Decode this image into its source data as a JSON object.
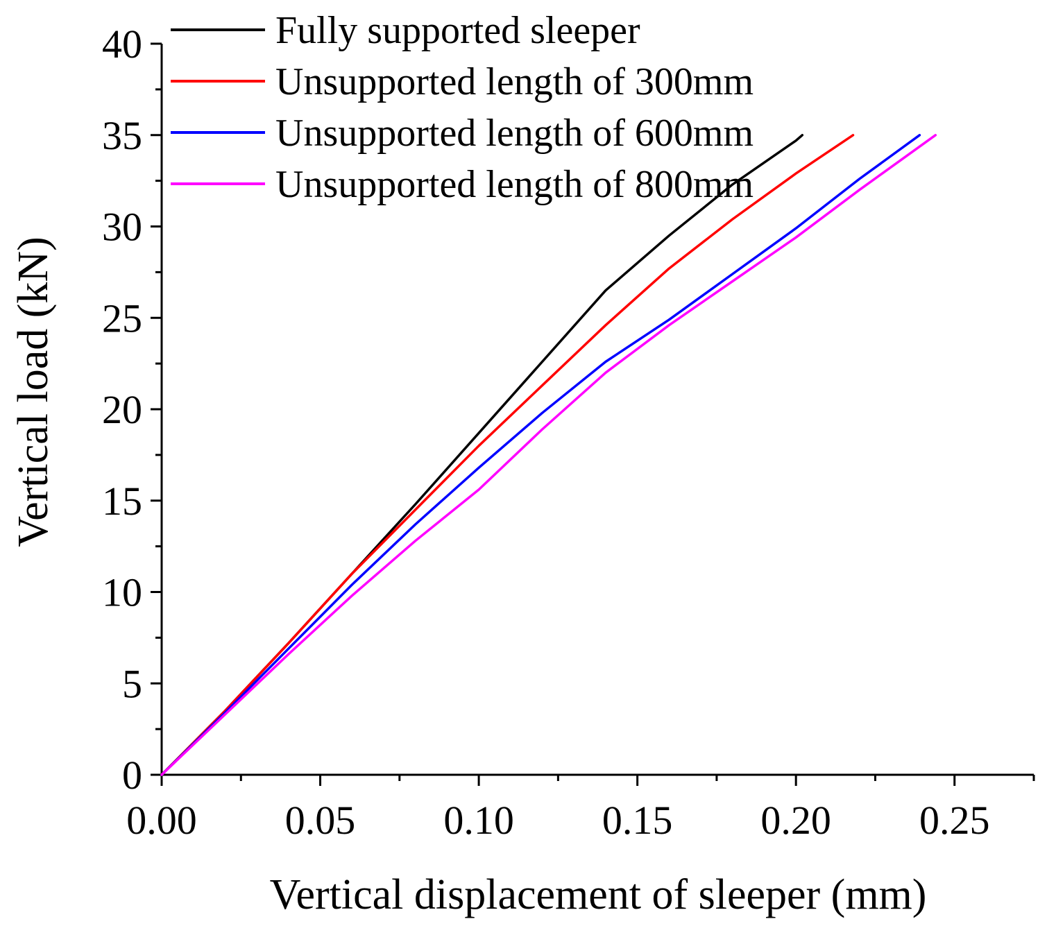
{
  "chart_data": {
    "type": "line",
    "title": "",
    "xlabel": "Vertical displacement of sleeper (mm)",
    "ylabel": "Vertical load (kN)",
    "xlim": [
      0,
      0.275
    ],
    "ylim": [
      0,
      40
    ],
    "xticks": [
      0.0,
      0.05,
      0.1,
      0.15,
      0.2,
      0.25
    ],
    "xtick_labels": [
      "0.00",
      "0.05",
      "0.10",
      "0.15",
      "0.20",
      "0.25"
    ],
    "yticks": [
      0,
      5,
      10,
      15,
      20,
      25,
      30,
      35,
      40
    ],
    "ytick_labels": [
      "0",
      "5",
      "10",
      "15",
      "20",
      "25",
      "30",
      "35",
      "40"
    ],
    "grid": false,
    "legend_position": "top-left",
    "series": [
      {
        "name": "Fully supported sleeper",
        "color": "#000000",
        "x": [
          0,
          0.02,
          0.04,
          0.06,
          0.08,
          0.1,
          0.12,
          0.14,
          0.16,
          0.18,
          0.2,
          0.202
        ],
        "y": [
          0,
          3.5,
          7.2,
          11.0,
          14.8,
          18.7,
          22.6,
          26.5,
          29.5,
          32.3,
          34.7,
          35
        ]
      },
      {
        "name": "Unsupported length of 300mm",
        "color": "#ff0000",
        "x": [
          0,
          0.02,
          0.04,
          0.06,
          0.08,
          0.1,
          0.12,
          0.14,
          0.16,
          0.18,
          0.2,
          0.218
        ],
        "y": [
          0,
          3.5,
          7.2,
          11.0,
          14.5,
          18.0,
          21.3,
          24.6,
          27.7,
          30.4,
          32.9,
          35
        ]
      },
      {
        "name": "Unsupported length of 600mm",
        "color": "#0000ff",
        "x": [
          0,
          0.02,
          0.04,
          0.06,
          0.08,
          0.1,
          0.12,
          0.14,
          0.16,
          0.18,
          0.2,
          0.22,
          0.239
        ],
        "y": [
          0,
          3.4,
          6.9,
          10.4,
          13.7,
          16.8,
          19.8,
          22.6,
          24.9,
          27.4,
          29.9,
          32.6,
          35
        ]
      },
      {
        "name": "Unsupported length of 800mm",
        "color": "#ff00ff",
        "x": [
          0,
          0.02,
          0.04,
          0.06,
          0.08,
          0.1,
          0.12,
          0.14,
          0.16,
          0.18,
          0.2,
          0.22,
          0.244
        ],
        "y": [
          0,
          3.3,
          6.6,
          9.8,
          12.8,
          15.6,
          18.9,
          22.0,
          24.6,
          27.0,
          29.4,
          32.0,
          35
        ]
      }
    ]
  }
}
